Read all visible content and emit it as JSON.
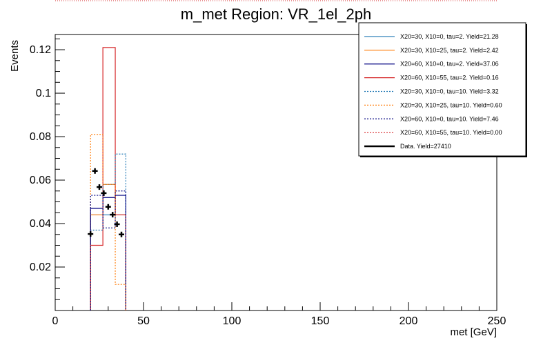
{
  "chart_data": {
    "type": "histogram",
    "title": "m_met Region: VR_1el_2ph",
    "xlabel": "met [GeV]",
    "ylabel": "Events",
    "xlim": [
      0,
      250
    ],
    "ylim": [
      0,
      0.127
    ],
    "x_ticks": [
      0,
      50,
      100,
      150,
      200,
      250
    ],
    "x_tick_labels": [
      "0",
      "50",
      "100",
      "150",
      "200",
      "250"
    ],
    "y_ticks": [
      0.02,
      0.04,
      0.06,
      0.08,
      0.1,
      0.12
    ],
    "y_tick_labels": [
      "0.02",
      "0.04",
      "0.06",
      "0.08",
      "0.1",
      "0.12"
    ],
    "legend_position": "top-right",
    "series": [
      {
        "name": "X20=30, X10=0, tau=2. Yield=21.28",
        "color": "#1f77b4",
        "style": "solid",
        "bins": [
          [
            20,
            40,
            0.044
          ]
        ]
      },
      {
        "name": "X20=30, X10=25, tau=2. Yield=2.42",
        "color": "#ff7f0e",
        "style": "solid",
        "bins": [
          [
            20,
            27,
            0.044
          ],
          [
            27,
            34,
            0.058
          ],
          [
            34,
            40,
            0.044
          ]
        ]
      },
      {
        "name": "X20=60, X10=0, tau=2. Yield=37.06",
        "color": "#000080",
        "style": "solid",
        "bins": [
          [
            20,
            27,
            0.047
          ],
          [
            27,
            34,
            0.052
          ],
          [
            34,
            40,
            0.053
          ]
        ]
      },
      {
        "name": "X20=60, X10=55, tau=2. Yield=0.16",
        "color": "#d62728",
        "style": "solid",
        "bins": [
          [
            20,
            27,
            0.03
          ],
          [
            27,
            34,
            0.121
          ],
          [
            34,
            40,
            0.044
          ]
        ]
      },
      {
        "name": "X20=30, X10=0, tau=10. Yield=3.32",
        "color": "#1f77b4",
        "style": "dotted",
        "bins": [
          [
            20,
            27,
            0.037
          ],
          [
            27,
            34,
            0.058
          ],
          [
            34,
            40,
            0.072
          ]
        ]
      },
      {
        "name": "X20=30, X10=25, tau=10. Yield=0.60",
        "color": "#ff7f0e",
        "style": "dotted",
        "bins": [
          [
            20,
            27,
            0.081
          ],
          [
            27,
            34,
            0.058
          ],
          [
            34,
            40,
            0.012
          ]
        ]
      },
      {
        "name": "X20=60, X10=0, tau=10. Yield=7.46",
        "color": "#000080",
        "style": "dotted",
        "bins": [
          [
            20,
            27,
            0.053
          ],
          [
            27,
            34,
            0.038
          ],
          [
            34,
            40,
            0.055
          ]
        ]
      },
      {
        "name": "X20=60, X10=55, tau=10. Yield=0.00",
        "color": "#d62728",
        "style": "dotted",
        "bins": []
      }
    ],
    "data": {
      "name": "Data. Yield=27410",
      "color": "#000000",
      "points": [
        {
          "x": 20.0,
          "y": 0.0352
        },
        {
          "x": 22.5,
          "y": 0.0642
        },
        {
          "x": 25.0,
          "y": 0.0568
        },
        {
          "x": 27.5,
          "y": 0.054
        },
        {
          "x": 30.0,
          "y": 0.0477
        },
        {
          "x": 32.5,
          "y": 0.0441
        },
        {
          "x": 35.0,
          "y": 0.0397
        },
        {
          "x": 37.5,
          "y": 0.035
        }
      ]
    }
  }
}
